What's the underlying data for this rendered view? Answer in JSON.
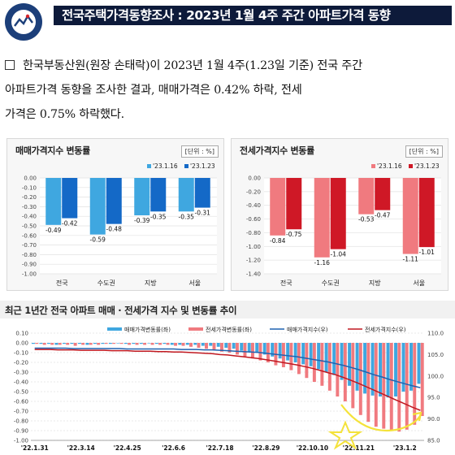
{
  "header": {
    "emblem_text_top": "국 가 통 계",
    "emblem_text_bottom": "NATIONAL STATISTICS",
    "title": "전국주택가격동향조사 : 2023년 1월 4주 주간 아파트가격 동향"
  },
  "summary": {
    "text": "한국부동산원(원장 손태락)이 2023년 1월 4주(1.23일 기준) 전국 주간\n아파트가격 동향을 조사한 결과, 매매가격은 0.42% 하락, 전세\n가격은 0.75% 하락했다."
  },
  "colors": {
    "sale_prev": "#3fa7e0",
    "sale_curr": "#1469c7",
    "rent_prev": "#f07a7f",
    "rent_curr": "#cf1826",
    "sale_index_line": "#1f62b0",
    "rent_index_line": "#c01820",
    "annotation": "#f4e23a"
  },
  "chart_data": [
    {
      "type": "bar",
      "title": "매매가격지수 변동률",
      "unit": "[단위 : %]",
      "categories": [
        "전국",
        "수도권",
        "지방",
        "서울"
      ],
      "ylim": [
        -1.0,
        0.0
      ],
      "yticks": [
        "0.00",
        "-0.10",
        "-0.20",
        "-0.30",
        "-0.40",
        "-0.50",
        "-0.60",
        "-0.70",
        "-0.80",
        "-0.90",
        "-1.00"
      ],
      "series": [
        {
          "name": "'23.1.16",
          "values": [
            -0.49,
            -0.59,
            -0.39,
            -0.35
          ]
        },
        {
          "name": "'23.1.23",
          "values": [
            -0.42,
            -0.48,
            -0.35,
            -0.31
          ]
        }
      ],
      "grid": true,
      "legend": "top"
    },
    {
      "type": "bar",
      "title": "전세가격지수 변동률",
      "unit": "[단위 : %]",
      "categories": [
        "전국",
        "수도권",
        "지방",
        "서울"
      ],
      "ylim": [
        -1.4,
        0.0
      ],
      "yticks": [
        "0.00",
        "-0.20",
        "-0.40",
        "-0.60",
        "-0.80",
        "-1.00",
        "-1.20",
        "-1.40"
      ],
      "series": [
        {
          "name": "'23.1.16",
          "values": [
            -0.84,
            -1.16,
            -0.53,
            -1.11
          ]
        },
        {
          "name": "'23.1.23",
          "values": [
            -0.75,
            -1.04,
            -0.47,
            -1.01
          ]
        }
      ],
      "grid": true,
      "legend": "top"
    },
    {
      "type": "bar",
      "title": "최근 1년간 전국 아파트 매매 · 전세가격 지수 및 변동률 추이",
      "legend_labels": [
        "매매가격변동률(좌)",
        "전세가격변동률(좌)",
        "매매가격지수(우)",
        "전세가격지수(우)"
      ],
      "x_ticks": [
        "'22.1.31",
        "'22.3.14",
        "'22.4.25",
        "'22.6.6",
        "'22.7.18",
        "'22.8.29",
        "'22.10.10",
        "'22.11.21",
        "'23.1.2"
      ],
      "ylim_left": [
        -1.0,
        0.1
      ],
      "yticks_left": [
        "0.10",
        "0.00",
        "-0.10",
        "-0.20",
        "-0.30",
        "-0.40",
        "-0.50",
        "-0.60",
        "-0.70",
        "-0.80",
        "-0.90",
        "-1.00"
      ],
      "ylim_right": [
        85.0,
        110.0
      ],
      "yticks_right": [
        "110.0",
        "105.0",
        "100.0",
        "95.0",
        "90.0",
        "85.0"
      ],
      "series": [
        {
          "name": "매매가격변동률(좌)",
          "axis": "left",
          "values": [
            -0.01,
            -0.01,
            -0.01,
            -0.02,
            -0.01,
            -0.01,
            -0.01,
            -0.02,
            -0.01,
            -0.01,
            -0.01,
            0.0,
            -0.01,
            -0.01,
            -0.01,
            0.0,
            -0.01,
            -0.01,
            -0.02,
            -0.02,
            -0.02,
            -0.02,
            -0.03,
            -0.03,
            -0.04,
            -0.05,
            -0.06,
            -0.08,
            -0.09,
            -0.1,
            -0.12,
            -0.14,
            -0.16,
            -0.18,
            -0.2,
            -0.22,
            -0.24,
            -0.27,
            -0.3,
            -0.33,
            -0.38,
            -0.44,
            -0.49,
            -0.52,
            -0.54,
            -0.55,
            -0.56,
            -0.55,
            -0.5,
            -0.49,
            -0.42
          ]
        },
        {
          "name": "전세가격변동률(좌)",
          "axis": "left",
          "values": [
            -0.01,
            -0.02,
            -0.02,
            -0.02,
            -0.02,
            -0.03,
            -0.02,
            -0.02,
            -0.02,
            -0.01,
            -0.01,
            -0.01,
            -0.02,
            -0.02,
            -0.02,
            -0.02,
            -0.02,
            -0.02,
            -0.03,
            -0.03,
            -0.04,
            -0.05,
            -0.06,
            -0.07,
            -0.09,
            -0.1,
            -0.12,
            -0.14,
            -0.16,
            -0.18,
            -0.2,
            -0.23,
            -0.25,
            -0.28,
            -0.32,
            -0.36,
            -0.4,
            -0.44,
            -0.49,
            -0.55,
            -0.6,
            -0.67,
            -0.74,
            -0.81,
            -0.86,
            -0.88,
            -0.9,
            -0.91,
            -0.89,
            -0.84,
            -0.75
          ]
        },
        {
          "name": "매매가격지수(우)",
          "axis": "right",
          "values": [
            106.5,
            106.5,
            106.5,
            106.5,
            106.5,
            106.4,
            106.4,
            106.4,
            106.4,
            106.4,
            106.4,
            106.4,
            106.3,
            106.3,
            106.3,
            106.3,
            106.3,
            106.3,
            106.3,
            106.2,
            106.2,
            106.2,
            106.1,
            106.1,
            106.0,
            105.9,
            105.8,
            105.7,
            105.6,
            105.5,
            105.3,
            105.1,
            104.9,
            104.7,
            104.5,
            104.2,
            103.9,
            103.6,
            103.3,
            102.9,
            102.5,
            102.0,
            101.5,
            100.9,
            100.3,
            99.8,
            99.2,
            98.7,
            98.2,
            97.7,
            97.3
          ]
        },
        {
          "name": "전세가격지수(우)",
          "axis": "right",
          "values": [
            106.2,
            106.2,
            106.2,
            106.1,
            106.1,
            106.1,
            106.0,
            106.0,
            106.0,
            106.0,
            105.9,
            105.9,
            105.9,
            105.8,
            105.8,
            105.8,
            105.7,
            105.7,
            105.6,
            105.6,
            105.5,
            105.4,
            105.3,
            105.2,
            105.0,
            104.9,
            104.7,
            104.5,
            104.3,
            104.1,
            103.8,
            103.5,
            103.2,
            102.9,
            102.6,
            102.2,
            101.8,
            101.3,
            100.8,
            100.3,
            99.7,
            99.0,
            98.3,
            97.5,
            96.7,
            95.9,
            95.1,
            94.3,
            93.5,
            92.7,
            92.0
          ]
        }
      ],
      "grid": true,
      "legend": "top"
    }
  ]
}
